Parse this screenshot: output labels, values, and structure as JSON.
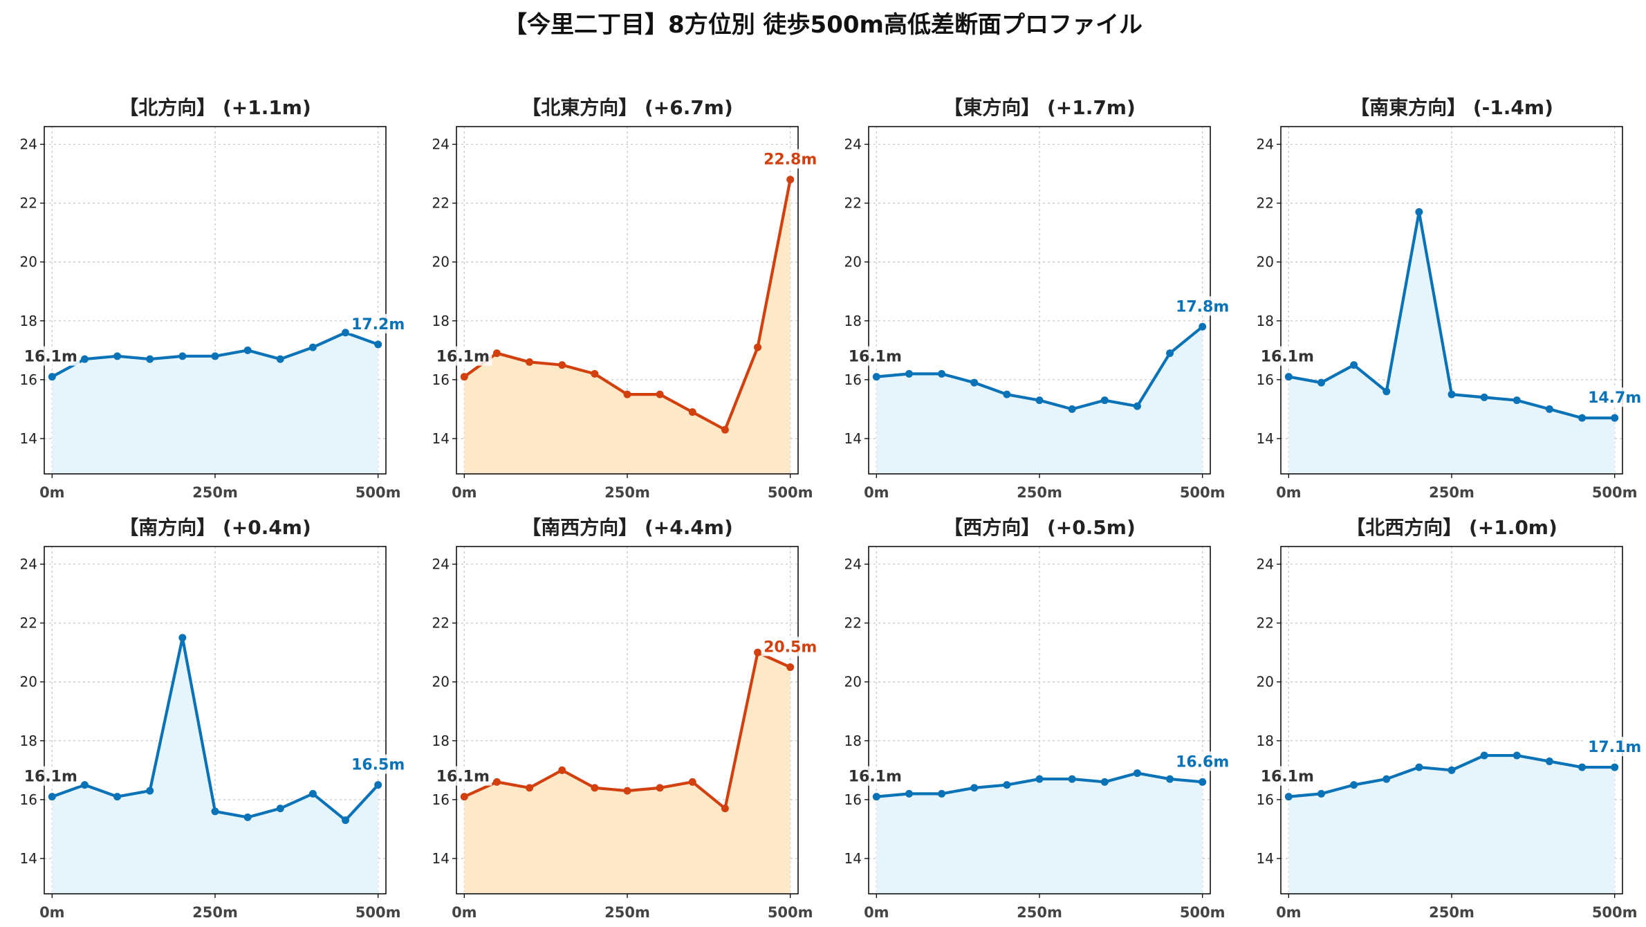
{
  "title": "【今里二丁目】8方位別 徒歩500m高低差断面プロファイル",
  "colors": {
    "blue_line": "#0a72b6",
    "blue_fill": "#e6f5fc",
    "red_line": "#d2400f",
    "red_fill": "#fde9c8"
  },
  "chart_data": [
    {
      "type": "area",
      "title": "【北方向】 (+1.1m)",
      "theme": "blue",
      "x": [
        0,
        50,
        100,
        150,
        200,
        250,
        300,
        350,
        400,
        450,
        500
      ],
      "y": [
        16.1,
        16.7,
        16.8,
        16.7,
        16.8,
        16.8,
        17.0,
        16.7,
        17.1,
        17.6,
        17.2
      ],
      "start_label": "16.1m",
      "end_label": "17.2m",
      "xticks": [
        "0m",
        "250m",
        "500m"
      ],
      "yticks": [
        14,
        16,
        18,
        20,
        22,
        24
      ],
      "ylim": [
        12.8,
        24.6
      ],
      "xlim": [
        -12,
        512
      ],
      "grid": true
    },
    {
      "type": "area",
      "title": "【北東方向】 (+6.7m)",
      "theme": "red",
      "x": [
        0,
        50,
        100,
        150,
        200,
        250,
        300,
        350,
        400,
        450,
        500
      ],
      "y": [
        16.1,
        16.9,
        16.6,
        16.5,
        16.2,
        15.5,
        15.5,
        14.9,
        14.3,
        17.1,
        22.8
      ],
      "start_label": "16.1m",
      "end_label": "22.8m",
      "xticks": [
        "0m",
        "250m",
        "500m"
      ],
      "yticks": [
        14,
        16,
        18,
        20,
        22,
        24
      ],
      "ylim": [
        12.8,
        24.6
      ],
      "xlim": [
        -12,
        512
      ],
      "grid": true
    },
    {
      "type": "area",
      "title": "【東方向】 (+1.7m)",
      "theme": "blue",
      "x": [
        0,
        50,
        100,
        150,
        200,
        250,
        300,
        350,
        400,
        450,
        500
      ],
      "y": [
        16.1,
        16.2,
        16.2,
        15.9,
        15.5,
        15.3,
        15.0,
        15.3,
        15.1,
        16.9,
        17.8
      ],
      "start_label": "16.1m",
      "end_label": "17.8m",
      "xticks": [
        "0m",
        "250m",
        "500m"
      ],
      "yticks": [
        14,
        16,
        18,
        20,
        22,
        24
      ],
      "ylim": [
        12.8,
        24.6
      ],
      "xlim": [
        -12,
        512
      ],
      "grid": true
    },
    {
      "type": "area",
      "title": "【南東方向】 (-1.4m)",
      "theme": "blue",
      "x": [
        0,
        50,
        100,
        150,
        200,
        250,
        300,
        350,
        400,
        450,
        500
      ],
      "y": [
        16.1,
        15.9,
        16.5,
        15.6,
        21.7,
        15.5,
        15.4,
        15.3,
        15.0,
        14.7,
        14.7
      ],
      "start_label": "16.1m",
      "end_label": "14.7m",
      "xticks": [
        "0m",
        "250m",
        "500m"
      ],
      "yticks": [
        14,
        16,
        18,
        20,
        22,
        24
      ],
      "ylim": [
        12.8,
        24.6
      ],
      "xlim": [
        -12,
        512
      ],
      "grid": true
    },
    {
      "type": "area",
      "title": "【南方向】 (+0.4m)",
      "theme": "blue",
      "x": [
        0,
        50,
        100,
        150,
        200,
        250,
        300,
        350,
        400,
        450,
        500
      ],
      "y": [
        16.1,
        16.5,
        16.1,
        16.3,
        21.5,
        15.6,
        15.4,
        15.7,
        16.2,
        15.3,
        16.5
      ],
      "start_label": "16.1m",
      "end_label": "16.5m",
      "xticks": [
        "0m",
        "250m",
        "500m"
      ],
      "yticks": [
        14,
        16,
        18,
        20,
        22,
        24
      ],
      "ylim": [
        12.8,
        24.6
      ],
      "xlim": [
        -12,
        512
      ],
      "grid": true
    },
    {
      "type": "area",
      "title": "【南西方向】 (+4.4m)",
      "theme": "red",
      "x": [
        0,
        50,
        100,
        150,
        200,
        250,
        300,
        350,
        400,
        450,
        500
      ],
      "y": [
        16.1,
        16.6,
        16.4,
        17.0,
        16.4,
        16.3,
        16.4,
        16.6,
        15.7,
        21.0,
        20.5
      ],
      "start_label": "16.1m",
      "end_label": "20.5m",
      "xticks": [
        "0m",
        "250m",
        "500m"
      ],
      "yticks": [
        14,
        16,
        18,
        20,
        22,
        24
      ],
      "ylim": [
        12.8,
        24.6
      ],
      "xlim": [
        -12,
        512
      ],
      "grid": true
    },
    {
      "type": "area",
      "title": "【西方向】 (+0.5m)",
      "theme": "blue",
      "x": [
        0,
        50,
        100,
        150,
        200,
        250,
        300,
        350,
        400,
        450,
        500
      ],
      "y": [
        16.1,
        16.2,
        16.2,
        16.4,
        16.5,
        16.7,
        16.7,
        16.6,
        16.9,
        16.7,
        16.6
      ],
      "start_label": "16.1m",
      "end_label": "16.6m",
      "xticks": [
        "0m",
        "250m",
        "500m"
      ],
      "yticks": [
        14,
        16,
        18,
        20,
        22,
        24
      ],
      "ylim": [
        12.8,
        24.6
      ],
      "xlim": [
        -12,
        512
      ],
      "grid": true
    },
    {
      "type": "area",
      "title": "【北西方向】 (+1.0m)",
      "theme": "blue",
      "x": [
        0,
        50,
        100,
        150,
        200,
        250,
        300,
        350,
        400,
        450,
        500
      ],
      "y": [
        16.1,
        16.2,
        16.5,
        16.7,
        17.1,
        17.0,
        17.5,
        17.5,
        17.3,
        17.1,
        17.1
      ],
      "start_label": "16.1m",
      "end_label": "17.1m",
      "xticks": [
        "0m",
        "250m",
        "500m"
      ],
      "yticks": [
        14,
        16,
        18,
        20,
        22,
        24
      ],
      "ylim": [
        12.8,
        24.6
      ],
      "xlim": [
        -12,
        512
      ],
      "grid": true
    }
  ]
}
